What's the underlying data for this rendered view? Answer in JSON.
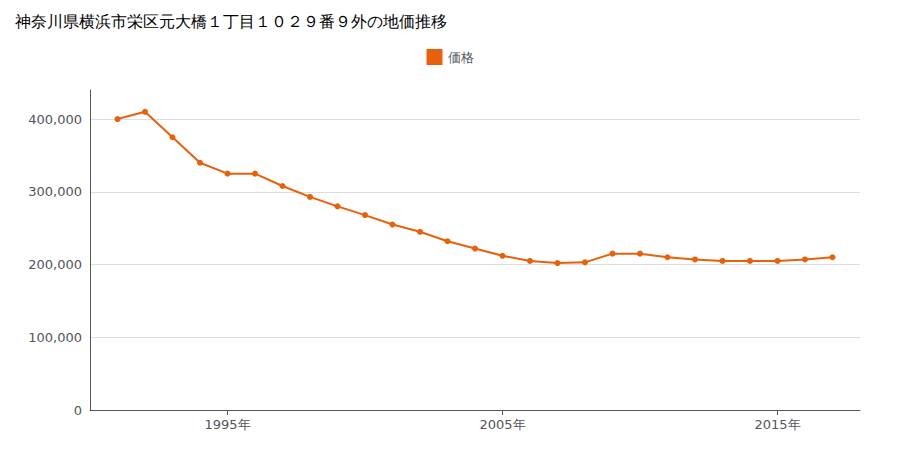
{
  "chart_data": {
    "type": "line",
    "title": "神奈川県横浜市栄区元大橋１丁目１０２９番９外の地価推移",
    "series": [
      {
        "name": "価格",
        "color": "#e8600a",
        "marker": "circle",
        "values": [
          400000,
          410000,
          375000,
          340000,
          325000,
          325000,
          308000,
          293000,
          280000,
          268000,
          255000,
          245000,
          232000,
          222000,
          212000,
          205000,
          202000,
          203000,
          215000,
          215000,
          210000,
          207000,
          205000,
          205000,
          205000,
          207000,
          210000
        ]
      }
    ],
    "x": [
      1991,
      1992,
      1993,
      1994,
      1995,
      1996,
      1997,
      1998,
      1999,
      2000,
      2001,
      2002,
      2003,
      2004,
      2005,
      2006,
      2007,
      2008,
      2009,
      2010,
      2011,
      2012,
      2013,
      2014,
      2015,
      2016,
      2017
    ],
    "xlim": [
      1990,
      2018
    ],
    "xticks": [
      {
        "value": 1995,
        "label": "1995年"
      },
      {
        "value": 2005,
        "label": "2005年"
      },
      {
        "value": 2015,
        "label": "2015年"
      }
    ],
    "ylim": [
      0,
      440000
    ],
    "yticks": [
      0,
      {
        "value": 100000,
        "label": "100,000"
      },
      {
        "value": 200000,
        "label": "200,000"
      },
      {
        "value": 300000,
        "label": "300,000"
      },
      {
        "value": 400000,
        "label": "400,000"
      }
    ],
    "grid": true,
    "legend": "top"
  }
}
